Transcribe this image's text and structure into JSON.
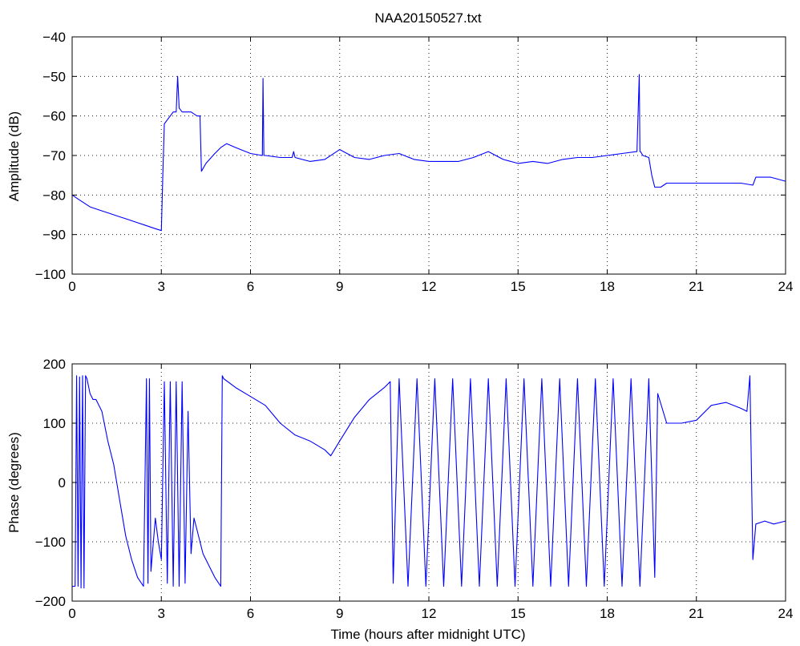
{
  "chart_data": [
    {
      "type": "line",
      "title": "NAA20150527.txt",
      "xlabel": "",
      "ylabel": "Amplitude (dB)",
      "xlim": [
        0,
        24
      ],
      "ylim": [
        -100,
        -40
      ],
      "xticks": [
        0,
        3,
        6,
        9,
        12,
        15,
        18,
        21,
        24
      ],
      "yticks": [
        -100,
        -90,
        -80,
        -70,
        -60,
        -50,
        -40
      ],
      "grid": true,
      "color": "#0000ff",
      "series": [
        {
          "x": [
            0,
            0.2,
            0.4,
            0.6,
            0.8,
            1.0,
            1.2,
            1.4,
            1.6,
            1.8,
            2.0,
            2.2,
            2.4,
            2.6,
            2.8,
            3.0,
            3.05,
            3.1,
            3.2,
            3.3,
            3.4,
            3.5,
            3.55,
            3.6,
            3.7,
            3.8,
            3.9,
            4.0,
            4.2,
            4.3,
            4.35,
            4.5,
            4.8,
            5.0,
            5.2,
            5.5,
            6.0,
            6.4,
            6.42,
            6.45,
            6.5,
            7.0,
            7.4,
            7.45,
            7.5,
            8.0,
            8.5,
            9.0,
            9.5,
            10.0,
            10.5,
            11.0,
            11.5,
            12.0,
            12.5,
            13.0,
            13.5,
            14.0,
            14.5,
            15.0,
            15.5,
            16.0,
            16.5,
            17.0,
            17.5,
            18.0,
            18.5,
            19.0,
            19.08,
            19.1,
            19.12,
            19.2,
            19.4,
            19.5,
            19.6,
            19.8,
            20.0,
            20.5,
            21.0,
            21.5,
            22.0,
            22.5,
            22.9,
            23.0,
            23.5,
            24.0
          ],
          "values": [
            -80,
            -81,
            -82,
            -83,
            -83.5,
            -84,
            -84.5,
            -85,
            -85.5,
            -86,
            -86.5,
            -87,
            -87.5,
            -88,
            -88.5,
            -89,
            -75,
            -62,
            -61,
            -60,
            -59,
            -59,
            -50,
            -58,
            -59,
            -59,
            -59,
            -59,
            -60,
            -60,
            -74,
            -72,
            -69.5,
            -68,
            -67,
            -68,
            -69.5,
            -70,
            -50.5,
            -70,
            -70,
            -70.5,
            -70.5,
            -69,
            -70.5,
            -71.5,
            -71,
            -68.5,
            -70.5,
            -71,
            -70,
            -69.5,
            -71,
            -71.5,
            -71.5,
            -71.5,
            -70.5,
            -69,
            -71,
            -72,
            -71.5,
            -72,
            -71,
            -70.5,
            -70.5,
            -70,
            -69.5,
            -69,
            -49.5,
            -69,
            -69,
            -70,
            -70.5,
            -75,
            -78,
            -78,
            -77,
            -77,
            -77,
            -77,
            -77,
            -77,
            -77.5,
            -75.5,
            -75.5,
            -76.5
          ]
        }
      ]
    },
    {
      "type": "line",
      "title": "",
      "xlabel": "Time (hours after midnight UTC)",
      "ylabel": "Phase (degrees)",
      "xlim": [
        0,
        24
      ],
      "ylim": [
        -200,
        200
      ],
      "xticks": [
        0,
        3,
        6,
        9,
        12,
        15,
        18,
        21,
        24
      ],
      "yticks": [
        -200,
        -100,
        0,
        100,
        200
      ],
      "grid": true,
      "color": "#0000ff",
      "series": [
        {
          "x": [
            0,
            0.1,
            0.15,
            0.2,
            0.25,
            0.3,
            0.35,
            0.4,
            0.45,
            0.5,
            0.6,
            0.7,
            0.8,
            1.0,
            1.2,
            1.4,
            1.6,
            1.8,
            2.0,
            2.2,
            2.4,
            2.5,
            2.55,
            2.6,
            2.65,
            2.7,
            2.8,
            2.9,
            3.0,
            3.1,
            3.2,
            3.3,
            3.4,
            3.5,
            3.6,
            3.7,
            3.8,
            3.9,
            4.0,
            4.1,
            4.2,
            4.4,
            4.6,
            4.8,
            5.0,
            5.05,
            5.1,
            5.5,
            6.0,
            6.5,
            7.0,
            7.5,
            8.0,
            8.5,
            8.7,
            9.0,
            9.5,
            10.0,
            10.5,
            10.7,
            10.8,
            11.0,
            11.3,
            11.6,
            11.9,
            12.2,
            12.5,
            12.8,
            13.1,
            13.4,
            13.7,
            14.0,
            14.3,
            14.6,
            14.9,
            15.2,
            15.5,
            15.8,
            16.1,
            16.4,
            16.7,
            17.0,
            17.3,
            17.6,
            17.9,
            18.2,
            18.5,
            18.8,
            19.1,
            19.4,
            19.6,
            19.7,
            20.0,
            20.5,
            21.0,
            21.5,
            22.0,
            22.5,
            22.7,
            22.8,
            22.9,
            23.0,
            23.3,
            23.6,
            24.0
          ],
          "values": [
            -175,
            -175,
            180,
            -175,
            178,
            -178,
            180,
            -178,
            180,
            175,
            150,
            140,
            140,
            120,
            70,
            30,
            -30,
            -90,
            -130,
            -160,
            -175,
            175,
            -170,
            175,
            -150,
            -120,
            -60,
            -100,
            -130,
            170,
            -170,
            170,
            -175,
            170,
            -175,
            170,
            -170,
            120,
            -120,
            -60,
            -80,
            -120,
            -140,
            -160,
            -175,
            180,
            175,
            160,
            145,
            130,
            100,
            80,
            70,
            55,
            45,
            70,
            110,
            140,
            160,
            170,
            -170,
            175,
            -175,
            175,
            -175,
            175,
            -175,
            175,
            -175,
            175,
            -175,
            175,
            -175,
            175,
            -175,
            175,
            -175,
            175,
            -175,
            175,
            -175,
            175,
            -175,
            175,
            -175,
            175,
            -175,
            175,
            -175,
            175,
            -160,
            150,
            100,
            100,
            105,
            130,
            135,
            125,
            120,
            180,
            -130,
            -70,
            -65,
            -70,
            -65
          ]
        }
      ]
    }
  ]
}
